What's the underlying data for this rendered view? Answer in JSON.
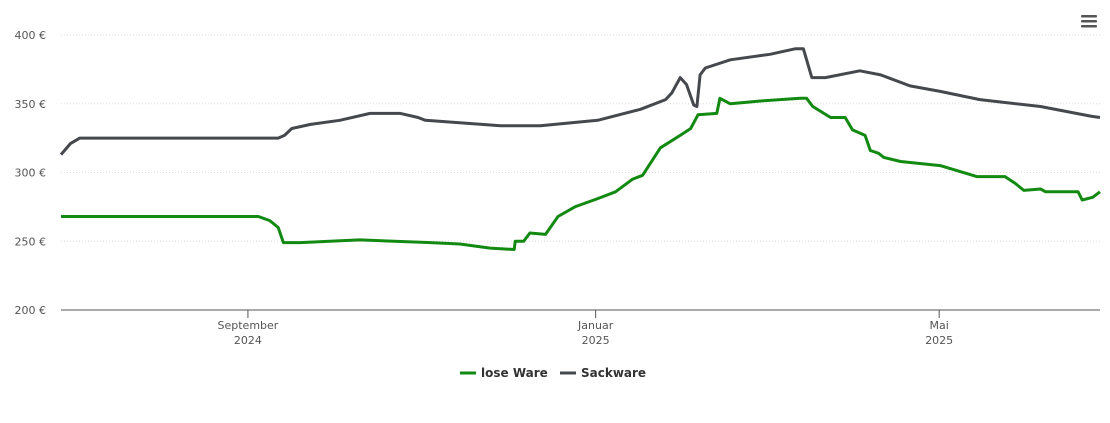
{
  "chart_data": {
    "type": "line",
    "xlim": [
      2024.488,
      2025.483
    ],
    "xticks": [
      {
        "value": 2024.667,
        "label": "September 2024"
      },
      {
        "value": 2025.0,
        "label": "Januar 2025"
      },
      {
        "value": 2025.329,
        "label": "Mai 2025"
      }
    ],
    "ylim": [
      200,
      400
    ],
    "yticks": [
      {
        "value": 200,
        "label": "200 €"
      },
      {
        "value": 250,
        "label": "250 €"
      },
      {
        "value": 300,
        "label": "300 €"
      },
      {
        "value": 350,
        "label": "350 €"
      },
      {
        "value": 400,
        "label": "400 €"
      }
    ],
    "grid": true,
    "series": [
      {
        "name": "lose Ware",
        "color": "#128a12",
        "x": [
          2024.488,
          2024.677,
          2024.688,
          2024.696,
          2024.701,
          2024.717,
          2024.774,
          2024.842,
          2024.87,
          2024.899,
          2024.922,
          2024.923,
          2024.931,
          2024.937,
          2024.952,
          2024.964,
          2024.98,
          2025.002,
          2025.019,
          2025.035,
          2025.045,
          2025.062,
          2025.081,
          2025.091,
          2025.098,
          2025.116,
          2025.119,
          2025.129,
          2025.158,
          2025.196,
          2025.202,
          2025.208,
          2025.225,
          2025.239,
          2025.246,
          2025.258,
          2025.263,
          2025.271,
          2025.276,
          2025.292,
          2025.33,
          2025.365,
          2025.392,
          2025.402,
          2025.41,
          2025.426,
          2025.431,
          2025.462,
          2025.466,
          2025.476,
          2025.483
        ],
        "values": [
          268,
          268,
          265,
          260,
          249,
          249,
          251,
          249,
          248,
          245,
          244,
          250,
          250,
          256,
          255,
          268,
          275,
          281,
          286,
          295,
          298,
          318,
          327,
          332,
          342,
          343,
          354,
          350,
          352,
          354,
          354,
          348,
          340,
          340,
          331,
          327,
          316,
          314,
          311,
          308,
          305,
          297,
          297,
          292,
          287,
          288,
          286,
          286,
          280,
          282,
          286
        ]
      },
      {
        "name": "Sackware",
        "color": "#45494d",
        "x": [
          2024.488,
          2024.497,
          2024.506,
          2024.696,
          2024.702,
          2024.709,
          2024.727,
          2024.755,
          2024.784,
          2024.813,
          2024.83,
          2024.837,
          2024.909,
          2024.947,
          2025.002,
          2025.043,
          2025.067,
          2025.073,
          2025.081,
          2025.087,
          2025.094,
          2025.097,
          2025.1,
          2025.105,
          2025.129,
          2025.167,
          2025.191,
          2025.199,
          2025.207,
          2025.22,
          2025.253,
          2025.273,
          2025.301,
          2025.33,
          2025.368,
          2025.426,
          2025.474,
          2025.483
        ],
        "values": [
          313,
          321,
          325,
          325,
          327,
          332,
          335,
          338,
          343,
          343,
          340,
          338,
          334,
          334,
          338,
          346,
          353,
          358,
          369,
          364,
          349,
          348,
          371,
          376,
          382,
          386,
          390,
          390,
          369,
          369,
          374,
          371,
          363,
          359,
          353,
          348,
          341,
          340
        ]
      }
    ]
  }
}
